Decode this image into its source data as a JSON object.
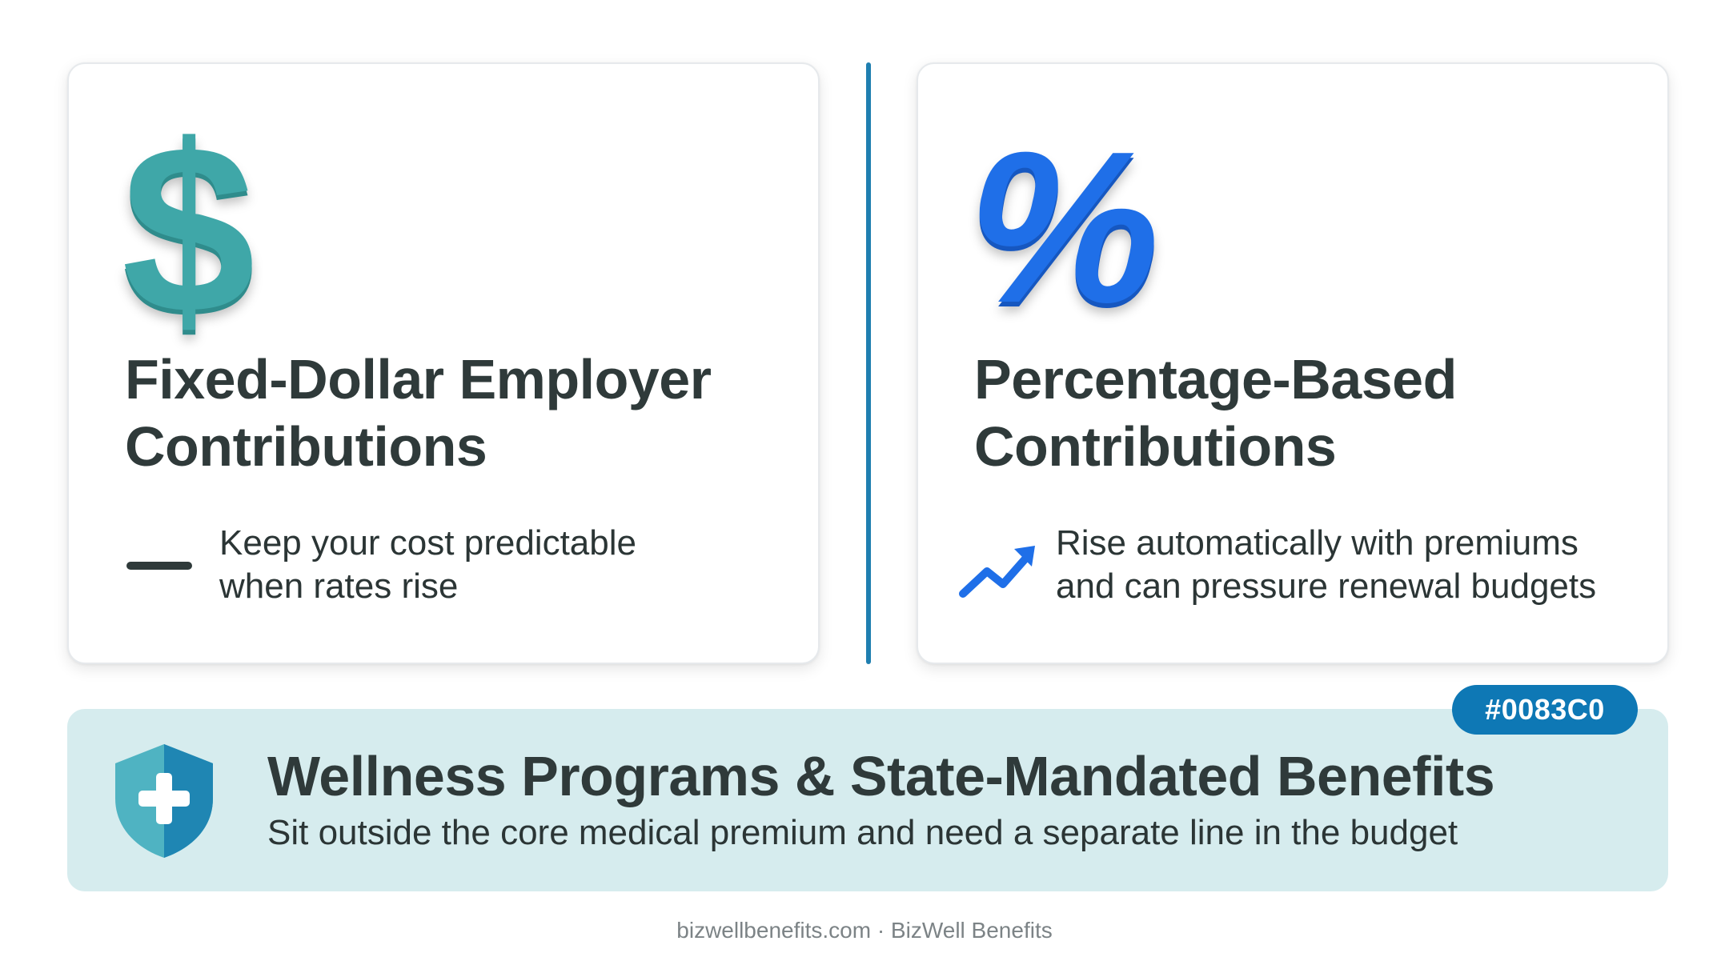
{
  "cards": [
    {
      "icon": "dollar-sign-icon",
      "icon_glyph": "$",
      "title_lines": [
        "Fixed-Dollar Employer",
        "Contributions"
      ],
      "desc_lines": [
        "Keep your cost predictable",
        "when rates rise"
      ],
      "bullet_icon": "flat-dash-icon"
    },
    {
      "icon": "percent-sign-icon",
      "icon_glyph": "%",
      "title_lines": [
        "Percentage-Based",
        "Contributions"
      ],
      "desc_lines": [
        "Rise automatically with premiums",
        "and can pressure renewal budgets"
      ],
      "bullet_icon": "trend-up-arrow-icon"
    }
  ],
  "banner": {
    "icon": "shield-plus-icon",
    "title": "Wellness Programs & State-Mandated Benefits",
    "desc": "Sit outside the core medical premium and need a separate line in the budget",
    "badge": "#0083C0"
  },
  "footer": "bizwellbenefits.com · BizWell Benefits",
  "colors": {
    "divider": "#1f7fb0",
    "dollar": "#3fa7a8",
    "percent": "#1f6fe8",
    "banner_bg": "#d6ecee",
    "badge_bg": "#0e78b5",
    "shield_left": "#4fb3c2",
    "shield_right": "#1f86b3"
  }
}
